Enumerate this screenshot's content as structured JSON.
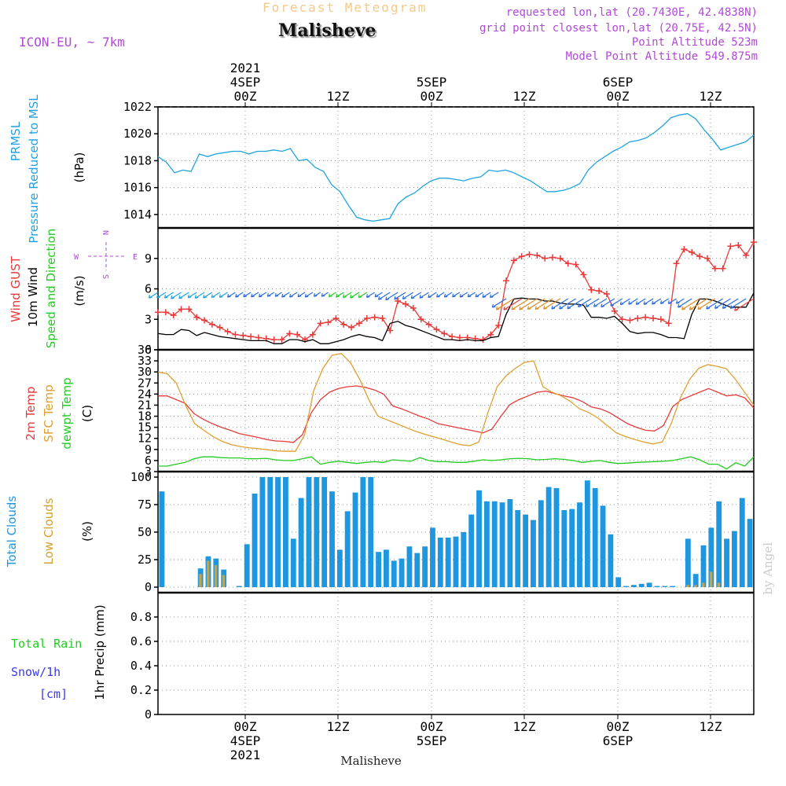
{
  "header": {
    "title": "Forecast Meteogram",
    "station": "Malisheve",
    "model": "ICON-EU, ~ 7km",
    "requested": "requested lon,lat (20.7430E, 42.4838N)",
    "gridpoint": "grid point closest lon,lat (20.75E, 42.5N)",
    "point_altitude": "Point Altitude 523m",
    "model_altitude": "Model Point Altitude 549.875m",
    "footer_station": "Malisheve",
    "credit": "by Angel"
  },
  "time_axis": {
    "year": "2021",
    "ticks": [
      "00Z",
      "12Z",
      "00Z",
      "12Z",
      "00Z",
      "12Z"
    ],
    "day_labels": [
      "4SEP",
      "5SEP",
      "6SEP"
    ]
  },
  "panel_labels": {
    "pressure": [
      "PRMSL",
      "Pressure Reduced to MSL",
      "(hPa)"
    ],
    "wind": [
      "Wind GUST",
      "10m Wind",
      "Speed and Direction",
      "(m/s)"
    ],
    "compass": [
      "N",
      "S",
      "W",
      "E"
    ],
    "temp": [
      "2m Temp",
      "SFC Temp",
      "dewpt Temp",
      "(C)"
    ],
    "cloud": [
      "Total Clouds",
      "Low Clouds",
      "(%)"
    ],
    "precip": [
      "Total  Rain",
      "Snow/1h",
      "[cm]",
      "1hr Precip (mm)"
    ]
  },
  "colors": {
    "pressure": "#1fa3e0",
    "gust": "#e83a3a",
    "wind": "#000000",
    "t2m": "#e83a3a",
    "sfc": "#e0a030",
    "dewpt": "#22cc22",
    "total_cloud": "#1f97e0",
    "low_cloud": "#d4a030",
    "rain": "#22cc22",
    "snow": "#3a3ae8"
  },
  "chart_data": [
    {
      "type": "line",
      "ylabel": "(hPa)",
      "ylim": [
        1013,
        1022
      ],
      "yticks": [
        1014,
        1016,
        1018,
        1020,
        1022
      ],
      "series": [
        {
          "name": "PRMSL",
          "values": [
            1018.3,
            1017.9,
            1017.1,
            1017.3,
            1017.2,
            1018.5,
            1018.3,
            1018.5,
            1018.6,
            1018.7,
            1018.7,
            1018.5,
            1018.7,
            1018.7,
            1018.8,
            1018.7,
            1018.9,
            1018.0,
            1018.1,
            1017.5,
            1017.2,
            1016.2,
            1015.7,
            1014.7,
            1013.8,
            1013.6,
            1013.5,
            1013.6,
            1013.7,
            1014.8,
            1015.3,
            1015.6,
            1016.1,
            1016.5,
            1016.7,
            1016.7,
            1016.6,
            1016.5,
            1016.7,
            1016.8,
            1017.3,
            1017.2,
            1017.3,
            1017.1,
            1016.8,
            1016.5,
            1016.1,
            1015.7,
            1015.7,
            1015.8,
            1016.0,
            1016.3,
            1017.3,
            1017.9,
            1018.3,
            1018.7,
            1019.0,
            1019.4,
            1019.5,
            1019.7,
            1020.1,
            1020.6,
            1021.2,
            1021.4,
            1021.5,
            1021.1,
            1020.3,
            1019.6,
            1018.8,
            1019.0,
            1019.2,
            1019.4,
            1019.9
          ]
        }
      ]
    },
    {
      "type": "line",
      "ylabel": "(m/s)",
      "ylim": [
        0,
        12
      ],
      "yticks": [
        0,
        3,
        6,
        9
      ],
      "series": [
        {
          "name": "Wind GUST",
          "values": [
            3.7,
            3.7,
            3.4,
            4.0,
            4.0,
            3.2,
            2.9,
            2.5,
            2.2,
            1.8,
            1.5,
            1.4,
            1.3,
            1.2,
            1.1,
            1.0,
            1.0,
            1.6,
            1.5,
            1.0,
            1.5,
            2.6,
            2.7,
            3.1,
            2.5,
            2.2,
            2.6,
            3.1,
            3.2,
            3.1,
            1.9,
            4.8,
            4.5,
            4.1,
            3.0,
            2.5,
            2.0,
            1.6,
            1.3,
            1.2,
            1.2,
            1.1,
            1.0,
            1.5,
            2.4,
            6.8,
            8.8,
            9.2,
            9.4,
            9.3,
            9.0,
            9.1,
            9.0,
            8.5,
            8.4,
            7.4,
            5.9,
            5.8,
            5.5,
            3.8,
            3.0,
            2.9,
            3.1,
            3.2,
            3.1,
            3.0,
            2.6,
            8.5,
            9.9,
            9.6,
            9.2,
            9.0,
            8.0,
            8.0,
            10.2,
            10.3,
            9.3,
            10.6
          ]
        },
        {
          "name": "10m Wind",
          "values": [
            1.6,
            1.5,
            1.5,
            2.0,
            1.9,
            1.4,
            1.7,
            1.5,
            1.3,
            1.2,
            1.1,
            1.0,
            0.9,
            0.9,
            0.9,
            0.6,
            0.6,
            1.0,
            1.0,
            0.8,
            1.0,
            0.6,
            0.6,
            0.8,
            1.0,
            1.3,
            1.5,
            1.3,
            1.2,
            0.9,
            2.6,
            2.8,
            2.4,
            2.2,
            1.9,
            1.6,
            1.3,
            1.0,
            1.0,
            0.9,
            1.0,
            0.9,
            0.9,
            1.2,
            1.3,
            3.5,
            5.0,
            5.1,
            5.0,
            5.0,
            4.8,
            4.8,
            4.6,
            4.5,
            4.5,
            4.4,
            3.2,
            3.2,
            3.1,
            3.3,
            2.6,
            1.8,
            1.6,
            1.7,
            1.7,
            1.5,
            1.2,
            1.2,
            1.1,
            3.5,
            5.0,
            5.0,
            4.8,
            4.5,
            4.2,
            4.2,
            4.2,
            5.6
          ]
        }
      ]
    },
    {
      "type": "line",
      "ylabel": "(C)",
      "ylim": [
        3,
        36
      ],
      "yticks": [
        3,
        6,
        9,
        12,
        15,
        18,
        21,
        24,
        27,
        30,
        33,
        36
      ],
      "series": [
        {
          "name": "2m Temp",
          "values": [
            23.5,
            23.5,
            22.5,
            21.5,
            18.7,
            17.2,
            16.0,
            15.0,
            14.2,
            13.3,
            12.8,
            12.3,
            11.7,
            11.3,
            11.2,
            10.9,
            13.0,
            19.0,
            22.5,
            24.5,
            25.5,
            26.0,
            26.2,
            25.8,
            25.1,
            24.0,
            20.8,
            20.0,
            19.0,
            18.0,
            17.2,
            16.0,
            15.5,
            15.0,
            14.5,
            14.0,
            13.5,
            14.5,
            18.0,
            21.2,
            22.5,
            23.5,
            24.5,
            24.8,
            24.1,
            23.5,
            23.0,
            22.0,
            20.5,
            20.0,
            19.0,
            17.5,
            16.0,
            15.0,
            14.2,
            14.0,
            15.5,
            20.5,
            22.5,
            23.5,
            24.5,
            25.5,
            24.5,
            23.5,
            23.8,
            23.0,
            20.2
          ]
        },
        {
          "name": "SFC Temp",
          "values": [
            30.0,
            29.5,
            27.0,
            21.0,
            16.0,
            14.2,
            12.5,
            11.2,
            10.3,
            9.8,
            9.4,
            9.2,
            8.9,
            8.6,
            8.5,
            8.5,
            13.0,
            25.0,
            31.0,
            34.5,
            35.0,
            32.5,
            28.0,
            22.5,
            18.0,
            17.0,
            16.0,
            15.0,
            14.0,
            13.2,
            12.5,
            11.8,
            11.0,
            10.3,
            10.0,
            11.0,
            19.0,
            26.0,
            29.0,
            31.0,
            32.6,
            33.0,
            26.0,
            24.5,
            23.5,
            22.0,
            20.0,
            19.0,
            17.5,
            15.5,
            13.5,
            12.5,
            11.7,
            11.0,
            10.5,
            11.0,
            16.0,
            23.0,
            28.0,
            31.0,
            32.0,
            31.5,
            30.9,
            28.0,
            24.5,
            21.0
          ]
        },
        {
          "name": "dewpt Temp",
          "values": [
            4.5,
            4.5,
            5.0,
            5.5,
            6.5,
            7.0,
            7.0,
            6.8,
            6.7,
            6.7,
            6.5,
            6.5,
            6.6,
            6.2,
            6.0,
            6.0,
            6.5,
            7.0,
            5.0,
            5.5,
            5.8,
            5.5,
            5.2,
            5.5,
            5.7,
            5.5,
            6.2,
            6.0,
            5.8,
            6.8,
            6.0,
            5.7,
            5.7,
            5.5,
            5.5,
            5.8,
            6.2,
            6.0,
            6.2,
            6.5,
            6.6,
            6.5,
            6.2,
            6.3,
            6.5,
            6.3,
            6.0,
            5.5,
            5.8,
            6.0,
            5.5,
            5.2,
            5.3,
            5.5,
            5.6,
            5.7,
            5.8,
            6.0,
            6.5,
            7.0,
            6.2,
            5.0,
            5.0,
            3.7,
            5.4,
            4.5,
            7.0
          ]
        }
      ]
    },
    {
      "type": "bar",
      "ylabel": "(%)",
      "ylim": [
        -5,
        105
      ],
      "yticks": [
        0,
        25,
        50,
        75,
        100
      ],
      "series": [
        {
          "name": "Total Clouds",
          "values": [
            87,
            0,
            0,
            0,
            0,
            17,
            28,
            26,
            16,
            0,
            1,
            39,
            85,
            100,
            100,
            100,
            100,
            44,
            81,
            100,
            100,
            100,
            87,
            34,
            69,
            86,
            100,
            100,
            32,
            34,
            24,
            26,
            37,
            31,
            37,
            54,
            45,
            45,
            46,
            50,
            66,
            88,
            78,
            78,
            77,
            80,
            70,
            66,
            61,
            79,
            91,
            90,
            70,
            71,
            77,
            97,
            90,
            74,
            48,
            9,
            1,
            2,
            3,
            4,
            1,
            1,
            1,
            0,
            44,
            12,
            38,
            54,
            78,
            44,
            51,
            81,
            62
          ]
        },
        {
          "name": "Low Clouds",
          "values": [
            0,
            0,
            0,
            0,
            0,
            12,
            24,
            20,
            11,
            0,
            0,
            0,
            0,
            0,
            0,
            0,
            0,
            0,
            0,
            0,
            0,
            0,
            0,
            0,
            0,
            0,
            0,
            0,
            0,
            0,
            0,
            0,
            0,
            0,
            0,
            0,
            0,
            0,
            0,
            0,
            0,
            0,
            0,
            0,
            0,
            0,
            0,
            0,
            0,
            0,
            0,
            0,
            0,
            0,
            0,
            0,
            0,
            0,
            0,
            0,
            0,
            0,
            0,
            0,
            0,
            0,
            0,
            0,
            2,
            2,
            4,
            14,
            4,
            0,
            0,
            0,
            0
          ]
        }
      ]
    },
    {
      "type": "bar",
      "ylabel": "1hr Precip (mm)",
      "ylim": [
        0,
        1
      ],
      "yticks": [
        0,
        0.2,
        0.4,
        0.6,
        0.8
      ],
      "series": [
        {
          "name": "Total Rain",
          "values": []
        },
        {
          "name": "Snow/1h",
          "values": []
        }
      ]
    }
  ]
}
